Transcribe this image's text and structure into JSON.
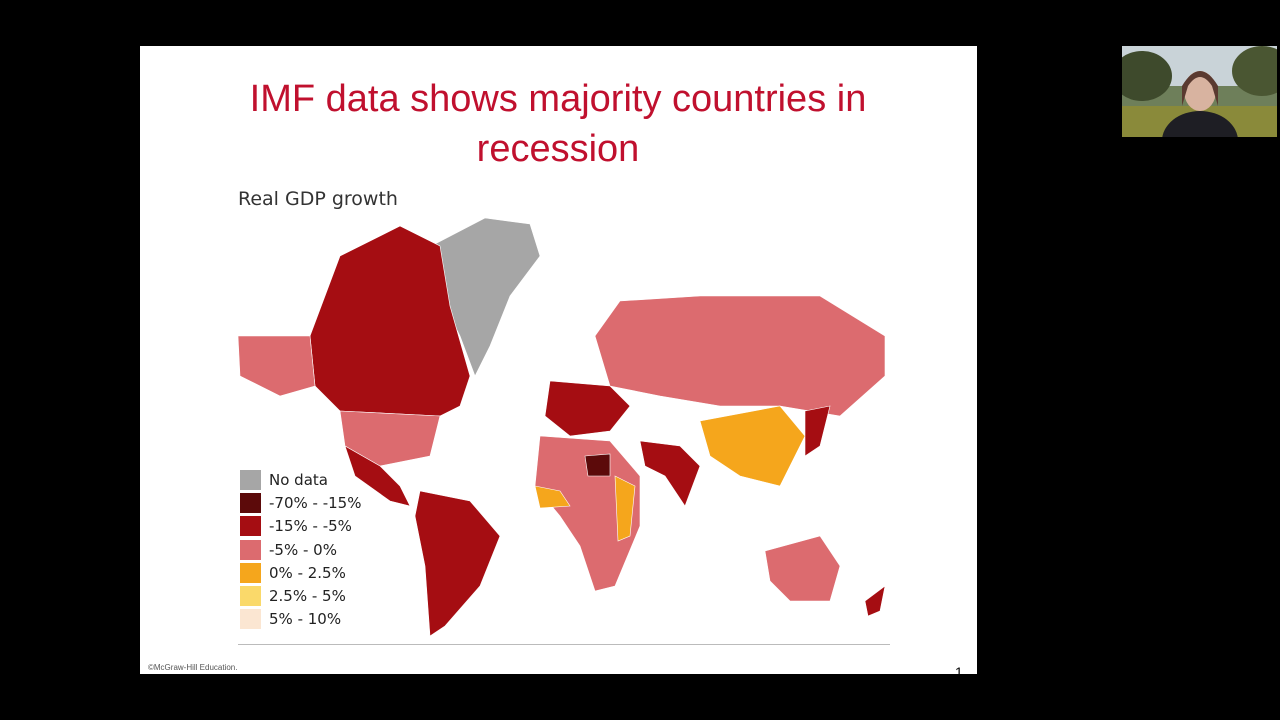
{
  "slide": {
    "title": "IMF data shows majority countries in recession",
    "map_title": "Real GDP growth",
    "legend": [
      {
        "label": "No data",
        "color": "#a6a6a6"
      },
      {
        "label": "-70% - -15%",
        "color": "#5c0a0a"
      },
      {
        "label": "-15% - -5%",
        "color": "#a50d12"
      },
      {
        "label": "-5% - 0%",
        "color": "#dc6b6f"
      },
      {
        "label": "0% - 2.5%",
        "color": "#f5a61c"
      },
      {
        "label": "2.5% - 5%",
        "color": "#fad96a"
      },
      {
        "label": "5% - 10%",
        "color": "#fbe6d2"
      }
    ],
    "footer": "©McGraw-Hill Education.",
    "page_number": "1"
  }
}
